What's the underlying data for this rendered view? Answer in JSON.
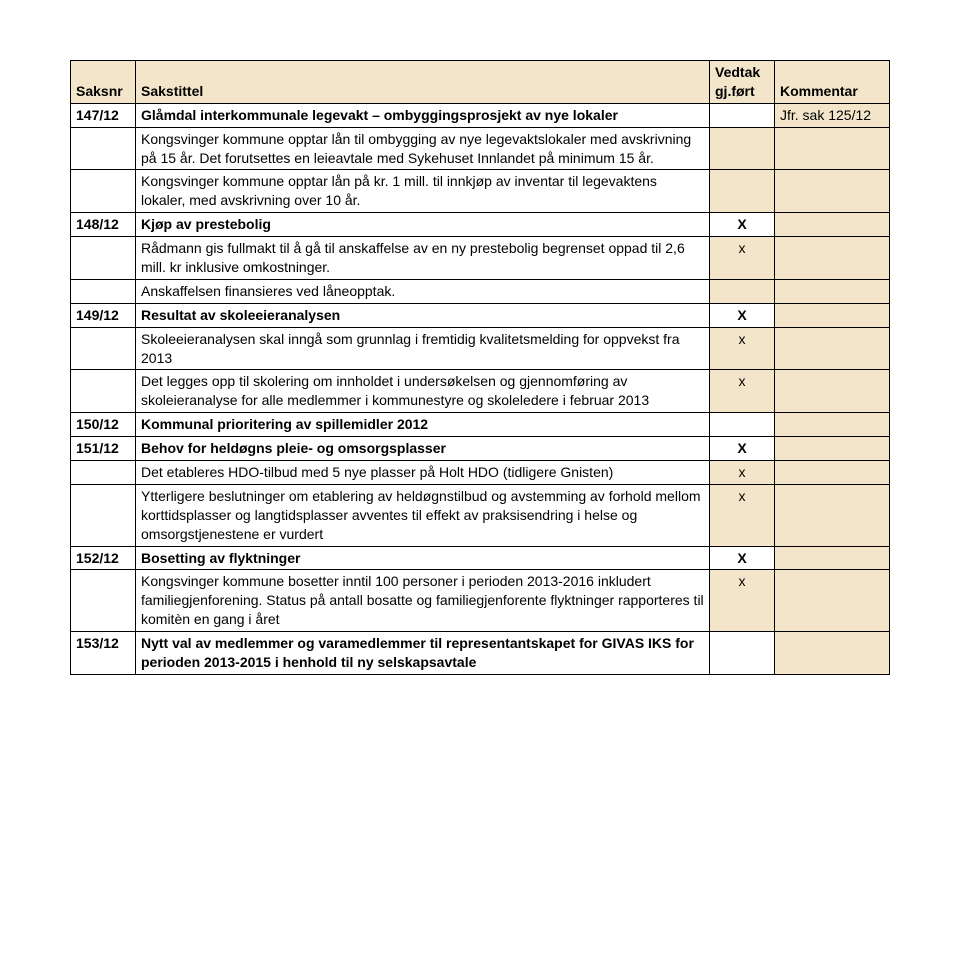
{
  "colors": {
    "header_bg": "#f2e5c9",
    "border": "#000000",
    "text": "#000000",
    "bg": "#ffffff"
  },
  "headers": {
    "c1": "Saksnr",
    "c2": "Sakstittel",
    "c3_line1": "Vedtak",
    "c3_line2": "gj.ført",
    "c4": "Kommentar"
  },
  "r147": {
    "num": "147/12",
    "title": "Glåmdal interkommunale legevakt – ombyggingsprosjekt av nye lokaler",
    "kommentar": "Jfr. sak 125/12",
    "sub1": "Kongsvinger kommune opptar lån til ombygging av nye legevaktslokaler med avskrivning på 15 år. Det forutsettes en leieavtale med Sykehuset Innlandet på minimum 15 år.",
    "sub2": "Kongsvinger kommune opptar lån på kr. 1 mill. til innkjøp av inventar til legevaktens lokaler, med avskrivning over 10 år."
  },
  "r148": {
    "num": "148/12",
    "title": "Kjøp av prestebolig",
    "mark": "X",
    "sub1": "Rådmann gis fullmakt til å gå til anskaffelse av en ny prestebolig begrenset oppad til 2,6 mill. kr inklusive omkostninger.",
    "sub1_mark": "x",
    "sub2": "Anskaffelsen finansieres ved låneopptak."
  },
  "r149": {
    "num": "149/12",
    "title": "Resultat av skoleeieranalysen",
    "mark": "X",
    "sub1": "Skoleeieranalysen skal inngå som grunnlag i fremtidig kvalitetsmelding for oppvekst fra 2013",
    "sub1_mark": "x",
    "sub2": "Det legges opp til skolering om innholdet i undersøkelsen og gjennomføring av skoleieranalyse for alle medlemmer i kommunestyre og skoleledere i februar 2013",
    "sub2_mark": "x"
  },
  "r150": {
    "num": "150/12",
    "title": "Kommunal prioritering av spillemidler 2012"
  },
  "r151": {
    "num": "151/12",
    "title": "Behov for heldøgns pleie- og omsorgsplasser",
    "mark": "X",
    "sub1": "Det etableres HDO-tilbud med 5 nye plasser på Holt HDO (tidligere Gnisten)",
    "sub1_mark": "x",
    "sub2": "Ytterligere beslutninger om etablering av heldøgnstilbud og avstemming av forhold mellom korttidsplasser og langtidsplasser avventes til effekt av praksisendring i helse og omsorgstjenestene er vurdert",
    "sub2_mark": "x"
  },
  "r152": {
    "num": "152/12",
    "title": "Bosetting av flyktninger",
    "mark": "X",
    "sub1": "Kongsvinger kommune bosetter inntil 100 personer i perioden 2013-2016 inkludert familiegjenforening. Status på antall bosatte og familiegjenforente flyktninger rapporteres til komitèn en gang i året",
    "sub1_mark": "x"
  },
  "r153": {
    "num": "153/12",
    "title": "Nytt val av medlemmer og varamedlemmer til representantskapet for GIVAS IKS for perioden 2013-2015 i henhold til ny selskapsavtale"
  }
}
